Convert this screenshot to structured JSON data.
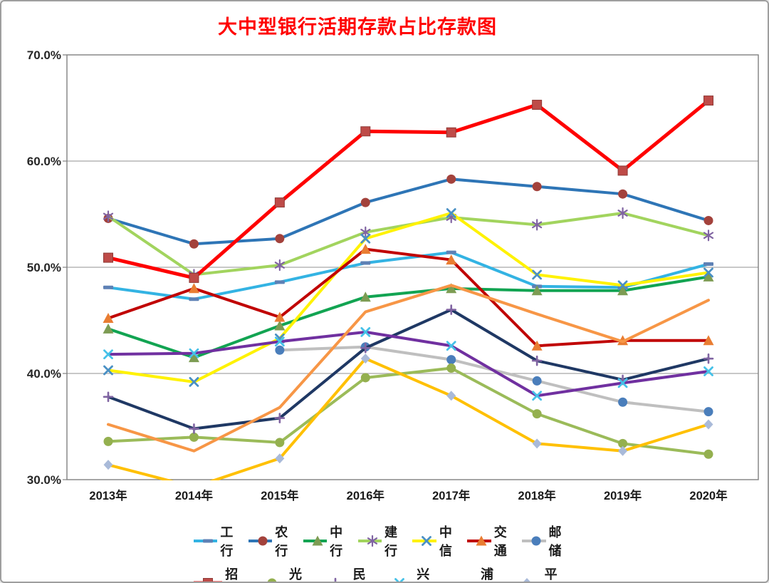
{
  "window": {
    "background": "#FFFFFF",
    "border_color": "#9E9E9E"
  },
  "chart_data": {
    "type": "line",
    "title": "大中型银行活期存款占比存款图",
    "title_color": "#FF0000",
    "categories": [
      "2013年",
      "2014年",
      "2015年",
      "2016年",
      "2017年",
      "2018年",
      "2019年",
      "2020年"
    ],
    "y_axis": {
      "min": 30,
      "max": 70,
      "tick_step": 10,
      "tick_labels": [
        "30.0%",
        "40.0%",
        "50.0%",
        "60.0%",
        "70.0%"
      ],
      "label_color": "#262626"
    },
    "grid": "horizontal",
    "grid_color": "#A6A6A6",
    "plot_border_color": "#808080",
    "legend_position": "bottom",
    "legend_rows": [
      7,
      6
    ],
    "series": [
      {
        "key": "icbc",
        "name": "工行",
        "line_color": "#33B3E3",
        "marker": "dash",
        "marker_color": "#5E81B5",
        "values": [
          48.1,
          47.0,
          48.6,
          50.4,
          51.4,
          48.2,
          48.1,
          50.3
        ]
      },
      {
        "key": "abc",
        "name": "农行",
        "line_color": "#2E75B6",
        "marker": "circle",
        "marker_color": "#A3423C",
        "values": [
          54.6,
          52.2,
          52.7,
          56.1,
          58.3,
          57.6,
          56.9,
          54.4
        ]
      },
      {
        "key": "boc",
        "name": "中行",
        "line_color": "#12A452",
        "marker": "triangle",
        "marker_color": "#7D9C53",
        "values": [
          44.2,
          41.5,
          44.5,
          47.2,
          48.0,
          47.8,
          47.8,
          49.1
        ]
      },
      {
        "key": "ccb",
        "name": "建行",
        "line_color": "#A2D45E",
        "marker": "asterisk",
        "marker_color": "#8064A2",
        "values": [
          54.8,
          49.3,
          50.2,
          53.3,
          54.7,
          54.0,
          55.1,
          53.0
        ]
      },
      {
        "key": "citic",
        "name": "中信",
        "line_color": "#FFF200",
        "marker": "x",
        "marker_color": "#4A90C4",
        "values": [
          40.3,
          39.2,
          43.3,
          52.7,
          55.1,
          49.3,
          48.3,
          49.5
        ]
      },
      {
        "key": "bocom",
        "name": "交通",
        "line_color": "#C00000",
        "marker": "triangle",
        "marker_color": "#E97D32",
        "values": [
          45.2,
          48.0,
          45.3,
          51.7,
          50.7,
          42.6,
          43.1,
          43.1
        ]
      },
      {
        "key": "psbc",
        "name": "邮储",
        "line_color": "#BFBFBF",
        "marker": "circle",
        "marker_color": "#4A7EBB",
        "values": [
          null,
          null,
          42.2,
          42.5,
          41.3,
          39.3,
          37.3,
          36.4
        ]
      },
      {
        "key": "cmb",
        "name": "招行",
        "line_color": "#FE0000",
        "marker": "square",
        "marker_color": "#BE4B48",
        "line_width": 5,
        "values": [
          50.9,
          49.0,
          56.1,
          62.8,
          62.7,
          65.3,
          59.1,
          65.7
        ]
      },
      {
        "key": "ceb",
        "name": "光大",
        "line_color": "#9BBB59",
        "marker": "circle",
        "marker_color": "#94B04F",
        "values": [
          33.6,
          34.0,
          33.5,
          39.6,
          40.5,
          36.2,
          33.4,
          32.4
        ]
      },
      {
        "key": "cmbc",
        "name": "民生",
        "line_color": "#1F3864",
        "marker": "plus",
        "marker_color": "#8064A2",
        "values": [
          37.8,
          34.8,
          35.8,
          42.4,
          46.0,
          41.2,
          39.4,
          41.4
        ]
      },
      {
        "key": "cib",
        "name": "兴业",
        "line_color": "#7030A0",
        "marker": "x",
        "marker_color": "#45C1E8",
        "values": [
          41.8,
          41.9,
          43.0,
          43.9,
          42.6,
          37.9,
          39.1,
          40.2
        ]
      },
      {
        "key": "spdb",
        "name": "浦发",
        "line_color": "#F79646",
        "marker": "none",
        "marker_color": "#F79646",
        "values": [
          35.2,
          32.7,
          36.8,
          45.8,
          48.3,
          45.6,
          43.0,
          46.9
        ]
      },
      {
        "key": "pab",
        "name": "平安",
        "line_color": "#FFC000",
        "marker": "diamond",
        "marker_color": "#A9BAD9",
        "values": [
          31.4,
          29.3,
          32.0,
          41.4,
          37.9,
          33.4,
          32.7,
          35.2
        ]
      }
    ]
  }
}
